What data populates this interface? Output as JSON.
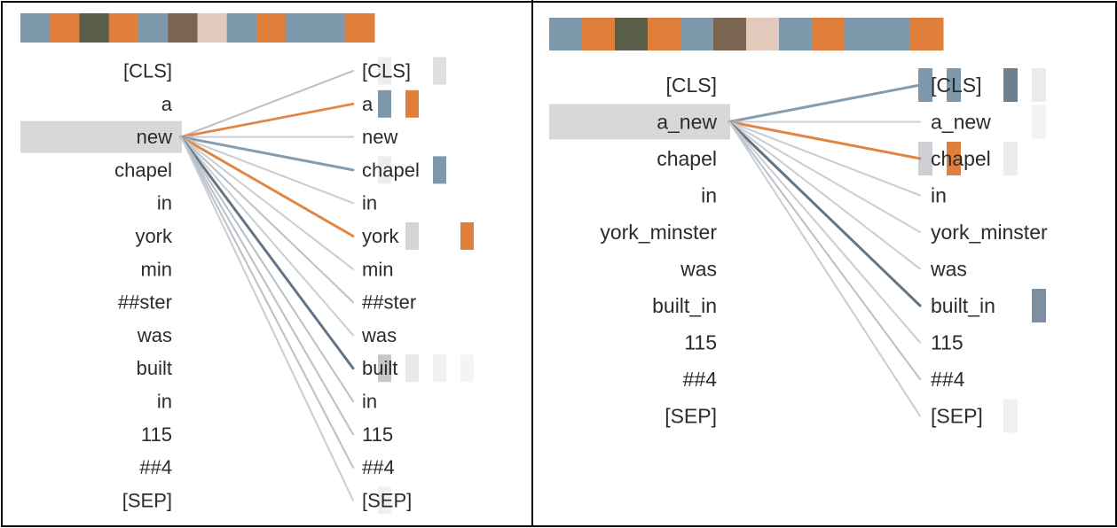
{
  "panels": [
    {
      "id": "left",
      "head_colors": [
        "#7d97ab",
        "#e07f3c",
        "#5a5f4a",
        "#e07f3c",
        "#7d97ab",
        "#7a6650",
        "#e3c8bc",
        "#7d97ab",
        "#e07f3c",
        "#7d97ab",
        "#7d97ab",
        "#e07f3c"
      ],
      "left_tokens": [
        "[CLS]",
        "a",
        "new",
        "chapel",
        "in",
        "york",
        "min",
        "##ster",
        "was",
        "built",
        "in",
        "115",
        "##4",
        "[SEP]"
      ],
      "right_tokens": [
        "[CLS]",
        "a",
        "new",
        "chapel",
        "in",
        "york",
        "min",
        "##ster",
        "was",
        "built",
        "in",
        "115",
        "##4",
        "[SEP]"
      ],
      "selected_index": 2,
      "edges": [
        {
          "to": 0,
          "color": "#b9bfc6",
          "weight": 0.5
        },
        {
          "to": 1,
          "color": "#e07f3c",
          "weight": 0.8
        },
        {
          "to": 2,
          "color": "#c9cdd2",
          "weight": 0.5
        },
        {
          "to": 3,
          "color": "#7d97ab",
          "weight": 0.9
        },
        {
          "to": 4,
          "color": "#c9cdd2",
          "weight": 0.5
        },
        {
          "to": 5,
          "color": "#e07f3c",
          "weight": 0.9
        },
        {
          "to": 6,
          "color": "#c9cdd2",
          "weight": 0.5
        },
        {
          "to": 7,
          "color": "#b9bfc6",
          "weight": 0.5
        },
        {
          "to": 8,
          "color": "#c9cdd2",
          "weight": 0.5
        },
        {
          "to": 9,
          "color": "#5a6d80",
          "weight": 0.9
        },
        {
          "to": 10,
          "color": "#b9bfc6",
          "weight": 0.5
        },
        {
          "to": 11,
          "color": "#b9bfc6",
          "weight": 0.5
        },
        {
          "to": 12,
          "color": "#b9bfc6",
          "weight": 0.5
        },
        {
          "to": 13,
          "color": "#c9cdd2",
          "weight": 0.5
        }
      ],
      "cells": [
        {
          "row": 0,
          "col": 0,
          "color": "#e8e8ea",
          "opacity": 0.8
        },
        {
          "row": 0,
          "col": 2,
          "color": "#d7d7da",
          "opacity": 0.8
        },
        {
          "row": 1,
          "col": 0,
          "color": "#7d97ab",
          "opacity": 1
        },
        {
          "row": 1,
          "col": 1,
          "color": "#e07f3c",
          "opacity": 1
        },
        {
          "row": 3,
          "col": 0,
          "color": "#e6e6e8",
          "opacity": 0.7
        },
        {
          "row": 3,
          "col": 2,
          "color": "#7d97ab",
          "opacity": 1
        },
        {
          "row": 5,
          "col": 1,
          "color": "#d5d3d8",
          "opacity": 1
        },
        {
          "row": 5,
          "col": 3,
          "color": "#e07f3c",
          "opacity": 1
        },
        {
          "row": 9,
          "col": 0,
          "color": "#c9c6cb",
          "opacity": 1
        },
        {
          "row": 9,
          "col": 1,
          "color": "#e4e3e6",
          "opacity": 0.8
        },
        {
          "row": 9,
          "col": 2,
          "color": "#ecebed",
          "opacity": 0.7
        },
        {
          "row": 9,
          "col": 3,
          "color": "#efeff1",
          "opacity": 0.7
        },
        {
          "row": 13,
          "col": 0,
          "color": "#ececee",
          "opacity": 0.8
        }
      ]
    },
    {
      "id": "right",
      "head_colors": [
        "#7d97ab",
        "#e07f3c",
        "#5a5f4a",
        "#e07f3c",
        "#7d97ab",
        "#7a6650",
        "#e3c8bc",
        "#7d97ab",
        "#e07f3c",
        "#7d97ab",
        "#7d97ab",
        "#e07f3c"
      ],
      "left_tokens": [
        "[CLS]",
        "a_new",
        "chapel",
        "in",
        "york_minster",
        "was",
        "built_in",
        "115",
        "##4",
        "[SEP]"
      ],
      "right_tokens": [
        "[CLS]",
        "a_new",
        "chapel",
        "in",
        "york_minster",
        "was",
        "built_in",
        "115",
        "##4",
        "[SEP]"
      ],
      "selected_index": 1,
      "edges": [
        {
          "to": 0,
          "color": "#7d97ab",
          "weight": 0.9
        },
        {
          "to": 1,
          "color": "#c9cdd2",
          "weight": 0.5
        },
        {
          "to": 2,
          "color": "#e07f3c",
          "weight": 0.9
        },
        {
          "to": 3,
          "color": "#c9cdd2",
          "weight": 0.5
        },
        {
          "to": 4,
          "color": "#c9cdd2",
          "weight": 0.5
        },
        {
          "to": 5,
          "color": "#c9cdd2",
          "weight": 0.5
        },
        {
          "to": 6,
          "color": "#5a6d80",
          "weight": 0.9
        },
        {
          "to": 7,
          "color": "#c9cdd2",
          "weight": 0.5
        },
        {
          "to": 8,
          "color": "#b9bfc6",
          "weight": 0.5
        },
        {
          "to": 9,
          "color": "#c9cdd2",
          "weight": 0.5
        }
      ],
      "cells": [
        {
          "row": 0,
          "col": 0,
          "color": "#7d97ab",
          "opacity": 1
        },
        {
          "row": 0,
          "col": 1,
          "color": "#7d97ab",
          "opacity": 1
        },
        {
          "row": 0,
          "col": 3,
          "color": "#6f7f8b",
          "opacity": 1
        },
        {
          "row": 0,
          "col": 4,
          "color": "#e6e6e8",
          "opacity": 0.8
        },
        {
          "row": 1,
          "col": 4,
          "color": "#ececee",
          "opacity": 0.7
        },
        {
          "row": 2,
          "col": 0,
          "color": "#cfcfd3",
          "opacity": 1
        },
        {
          "row": 2,
          "col": 1,
          "color": "#e07f3c",
          "opacity": 1
        },
        {
          "row": 2,
          "col": 3,
          "color": "#e7e7ea",
          "opacity": 0.8
        },
        {
          "row": 6,
          "col": 4,
          "color": "#7d8fa0",
          "opacity": 1
        },
        {
          "row": 9,
          "col": 3,
          "color": "#ececee",
          "opacity": 0.8
        }
      ]
    }
  ]
}
